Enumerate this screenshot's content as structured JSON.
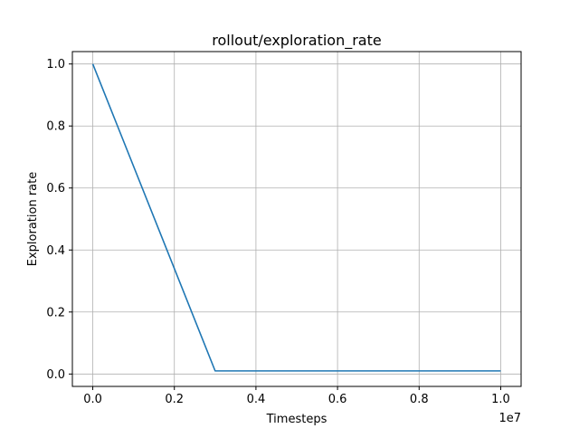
{
  "chart_data": {
    "type": "line",
    "title": "rollout/exploration_rate",
    "xlabel": "Timesteps",
    "ylabel": "Exploration rate",
    "x_offset_label": "1e7",
    "xlim": [
      -0.05,
      1.05
    ],
    "ylim": [
      -0.04,
      1.04
    ],
    "xticks": [
      0.0,
      0.2,
      0.4,
      0.6,
      0.8,
      1.0
    ],
    "xtick_labels": [
      "0.0",
      "0.2",
      "0.4",
      "0.6",
      "0.8",
      "1.0"
    ],
    "yticks": [
      0.0,
      0.2,
      0.4,
      0.6,
      0.8,
      1.0
    ],
    "ytick_labels": [
      "0.0",
      "0.2",
      "0.4",
      "0.6",
      "0.8",
      "1.0"
    ],
    "grid": true,
    "series": [
      {
        "color": "#1f77b4",
        "x": [
          0.0,
          0.3,
          1.0
        ],
        "y": [
          1.0,
          0.01,
          0.01
        ]
      }
    ]
  }
}
